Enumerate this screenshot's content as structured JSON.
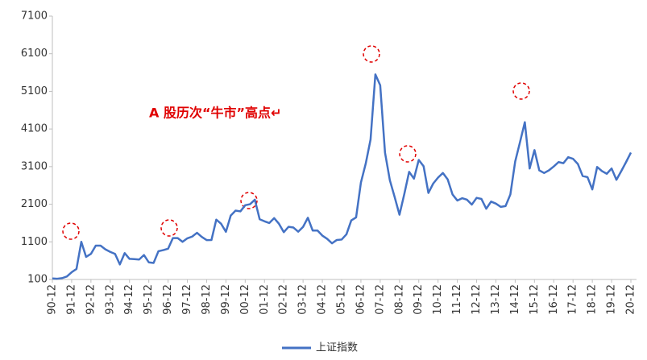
{
  "chart_data": {
    "type": "line",
    "annotation": "A 股历次“牛市”高点↵",
    "categories": [
      "90-12",
      null,
      null,
      null,
      "91-12",
      null,
      null,
      null,
      "92-12",
      null,
      null,
      null,
      "93-12",
      null,
      null,
      null,
      "94-12",
      null,
      null,
      null,
      "95-12",
      null,
      null,
      null,
      "96-12",
      null,
      null,
      null,
      "97-12",
      null,
      null,
      null,
      "98-12",
      null,
      null,
      null,
      "99-12",
      null,
      null,
      null,
      "00-12",
      null,
      null,
      null,
      "01-12",
      null,
      null,
      null,
      "02-12",
      null,
      null,
      null,
      "03-12",
      null,
      null,
      null,
      "04-12",
      null,
      null,
      null,
      "05-12",
      null,
      null,
      null,
      "06-12",
      null,
      null,
      null,
      "07-12",
      null,
      null,
      null,
      "08-12",
      null,
      null,
      null,
      "09-12",
      null,
      null,
      null,
      "10-12",
      null,
      null,
      null,
      "11-12",
      null,
      null,
      null,
      "12-12",
      null,
      null,
      null,
      "13-12",
      null,
      null,
      null,
      "14-12",
      null,
      null,
      null,
      "15-12",
      null,
      null,
      null,
      "16-12",
      null,
      null,
      null,
      "17-12",
      null,
      null,
      null,
      "18-12",
      null,
      null,
      null,
      "19-12",
      null,
      null,
      null,
      "20-12"
    ],
    "series": [
      {
        "name": "上证指数",
        "color": "#4472c4",
        "values": [
          127,
          120,
          135,
          180,
          292,
          380,
          1100,
          700,
          780,
          1000,
          1000,
          900,
          833,
          780,
          500,
          800,
          648,
          640,
          630,
          750,
          555,
          540,
          850,
          880,
          917,
          1200,
          1200,
          1100,
          1194,
          1240,
          1340,
          1230,
          1147,
          1150,
          1690,
          1580,
          1367,
          1800,
          1930,
          1910,
          2073,
          2100,
          2220,
          1700,
          1646,
          1600,
          1730,
          1580,
          1357,
          1500,
          1480,
          1370,
          1497,
          1740,
          1400,
          1400,
          1266,
          1180,
          1060,
          1150,
          1161,
          1300,
          1670,
          1750,
          2675,
          3180,
          3820,
          5550,
          5262,
          3470,
          2740,
          2290,
          1821,
          2370,
          2960,
          2780,
          3277,
          3110,
          2400,
          2650,
          2808,
          2930,
          2760,
          2360,
          2199,
          2260,
          2220,
          2090,
          2269,
          2240,
          1980,
          2170,
          2116,
          2030,
          2050,
          2360,
          3235,
          3750,
          4280,
          3050,
          3539,
          3000,
          2930,
          3000,
          3104,
          3220,
          3190,
          3350,
          3307,
          3170,
          2850,
          2820,
          2494,
          3090,
          2980,
          2910,
          3050,
          2750,
          2980,
          3220,
          3473
        ]
      }
    ],
    "ylim": [
      100,
      7100
    ],
    "yticks": [
      100,
      1100,
      2100,
      3100,
      4100,
      5100,
      6100,
      7100
    ]
  }
}
